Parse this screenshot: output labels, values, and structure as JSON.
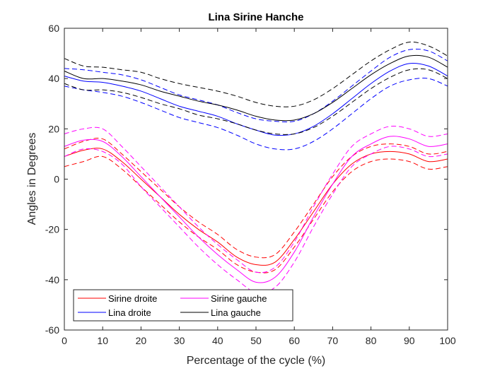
{
  "chart_data": {
    "type": "line",
    "title": "Lina Sirine Hanche",
    "xlabel": "Percentage of the cycle (%)",
    "ylabel": "Angles in Degrees",
    "xlim": [
      0,
      100
    ],
    "ylim": [
      -60,
      60
    ],
    "x_ticks": [
      0,
      10,
      20,
      30,
      40,
      50,
      60,
      70,
      80,
      90,
      100
    ],
    "y_ticks": [
      -60,
      -40,
      -20,
      0,
      20,
      40,
      60
    ],
    "grid": false,
    "legend_position": "bottom-left",
    "legend_columns": 2,
    "x": [
      0,
      5,
      10,
      15,
      20,
      25,
      30,
      35,
      40,
      45,
      50,
      55,
      60,
      65,
      70,
      75,
      80,
      85,
      90,
      95,
      100
    ],
    "series": [
      {
        "name": "Sirine droite",
        "color": "#ff0000",
        "mean": [
          9,
          11.5,
          12,
          7,
          0,
          -7,
          -14,
          -20,
          -25,
          -31,
          -34,
          -33,
          -24,
          -13,
          -2,
          6,
          10,
          11,
          10,
          7,
          8
        ],
        "upper": [
          12,
          15,
          16,
          10,
          3,
          -4,
          -11,
          -17,
          -22,
          -28,
          -31,
          -30,
          -21,
          -10,
          1,
          9,
          13,
          14,
          13,
          10,
          11
        ],
        "lower": [
          5,
          7,
          9,
          4,
          -3,
          -10,
          -17,
          -23,
          -28,
          -34,
          -37,
          -36,
          -27,
          -16,
          -5,
          3,
          7,
          8,
          7,
          4,
          5
        ]
      },
      {
        "name": "Sirine gauche",
        "color": "#ff00ff",
        "mean": [
          13,
          15.5,
          15,
          9,
          1,
          -7,
          -15,
          -23,
          -30,
          -36,
          -41,
          -39,
          -29,
          -15,
          -2,
          9,
          14,
          17,
          16,
          13,
          14
        ],
        "upper": [
          18,
          20,
          20,
          13,
          5,
          -3,
          -11,
          -19,
          -26,
          -32,
          -37,
          -35,
          -25,
          -11,
          2,
          13,
          18,
          21,
          20,
          17,
          18
        ],
        "lower": [
          9,
          12,
          11,
          6,
          -3,
          -11,
          -19,
          -27,
          -34,
          -40,
          -45,
          -43,
          -33,
          -19,
          -6,
          5,
          10,
          13,
          12,
          9,
          10
        ]
      },
      {
        "name": "Lina droite",
        "color": "#0000ff",
        "mean": [
          41,
          39,
          38.5,
          37,
          35,
          32,
          29,
          27,
          25,
          22,
          19.5,
          17.5,
          18,
          21,
          26,
          32,
          38,
          43,
          46,
          45,
          41
        ],
        "upper": [
          44,
          43.5,
          42.5,
          41.5,
          39.5,
          36.5,
          33.5,
          31.5,
          29.5,
          26.5,
          24,
          23,
          23,
          26,
          31,
          37,
          43,
          48.5,
          51.5,
          51,
          47
        ],
        "lower": [
          37,
          35.5,
          34.5,
          33,
          30.5,
          27.5,
          24.5,
          22.5,
          20.5,
          17.5,
          14,
          12,
          12,
          15,
          20,
          26,
          32,
          37,
          39.5,
          40,
          37
        ]
      },
      {
        "name": "Lina gauche",
        "color": "#000000",
        "mean": [
          43,
          40,
          40,
          39,
          37.5,
          35,
          33,
          31,
          29.5,
          27.5,
          25,
          23.5,
          23.5,
          26,
          30.5,
          36,
          41.5,
          46,
          49,
          48.5,
          44.5
        ],
        "upper": [
          48,
          45,
          44.5,
          43.5,
          42.5,
          40,
          38,
          36.5,
          35,
          33,
          30.5,
          29,
          29,
          31.5,
          36,
          41.5,
          47,
          51.5,
          54.5,
          53,
          49
        ],
        "lower": [
          38,
          35.5,
          35.5,
          34.5,
          32.5,
          30,
          28,
          25.5,
          24,
          22,
          19.5,
          18,
          18,
          20.5,
          25,
          30.5,
          36,
          40.5,
          43.5,
          43.5,
          40
        ]
      }
    ]
  }
}
